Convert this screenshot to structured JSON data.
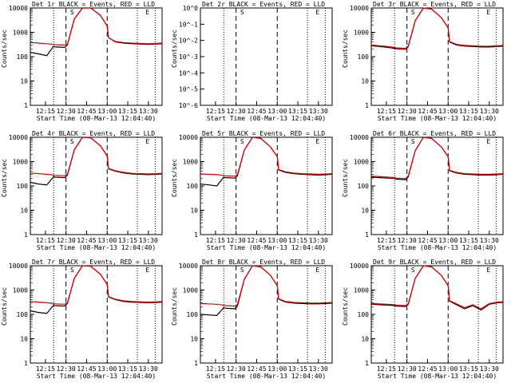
{
  "figure": {
    "xlabel": "Start Time (08-Mar-13 12:04:40)",
    "ylabel": "Counts/sec",
    "x_tick_labels": [
      "12:15",
      "12:30",
      "12:45",
      "13:00",
      "13:15",
      "13:30"
    ],
    "y_tick_labels_log": [
      "1",
      "10",
      "100",
      "1000",
      "10000"
    ],
    "y_tick_labels_small": [
      "10^0",
      "10^-1",
      "10^-2",
      "10^-3",
      "10^-4",
      "10^-5",
      "10^-6"
    ],
    "series_colors": {
      "events": "#000000",
      "lld": "#e00000"
    },
    "annotation_markers": [
      "S",
      "S",
      "E"
    ]
  },
  "chart_data": [
    {
      "type": "line",
      "title": "Det 1r BLACK = Events, RED = LLD",
      "ylim": [
        1,
        10000
      ],
      "log": true,
      "x": [
        "12:04",
        "12:10",
        "12:16",
        "12:21",
        "12:22",
        "12:29",
        "12:31",
        "12:36",
        "12:42",
        "12:48",
        "12:55",
        "13:00",
        "13:01",
        "13:06",
        "13:12",
        "13:18",
        "13:24",
        "13:30",
        "13:36",
        "13:40"
      ],
      "series": [
        {
          "name": "Events",
          "values": [
            150,
            130,
            110,
            270,
            250,
            240,
            300,
            3500,
            12000,
            10000,
            5000,
            1800,
            600,
            400,
            360,
            340,
            330,
            320,
            330,
            340
          ]
        },
        {
          "name": "LLD",
          "values": [
            380,
            360,
            340,
            320,
            310,
            300,
            320,
            3500,
            12000,
            10000,
            5000,
            1800,
            600,
            420,
            380,
            360,
            350,
            340,
            350,
            360
          ]
        }
      ]
    },
    {
      "type": "line",
      "title": "Det 2r BLACK = Events, RED = LLD",
      "ylim": [
        1e-06,
        1
      ],
      "log": true,
      "x": [],
      "series": []
    },
    {
      "type": "line",
      "title": "Det 3r BLACK = Events, RED = LLD",
      "ylim": [
        1,
        10000
      ],
      "log": true,
      "x": [
        "12:04",
        "12:10",
        "12:16",
        "12:21",
        "12:22",
        "12:29",
        "12:31",
        "12:36",
        "12:42",
        "12:48",
        "12:55",
        "13:00",
        "13:01",
        "13:06",
        "13:12",
        "13:18",
        "13:24",
        "13:30",
        "13:36",
        "13:40"
      ],
      "series": [
        {
          "name": "Events",
          "values": [
            280,
            260,
            240,
            220,
            210,
            200,
            260,
            3000,
            12000,
            9000,
            4000,
            1500,
            400,
            300,
            270,
            260,
            250,
            250,
            260,
            270
          ]
        },
        {
          "name": "LLD",
          "values": [
            300,
            280,
            260,
            240,
            230,
            220,
            280,
            3000,
            12000,
            9000,
            4000,
            1500,
            420,
            320,
            290,
            280,
            270,
            270,
            280,
            290
          ]
        }
      ]
    },
    {
      "type": "line",
      "title": "Det 4r BLACK = Events, RED = LLD",
      "ylim": [
        1,
        10000
      ],
      "log": true,
      "x": [
        "12:04",
        "12:10",
        "12:16",
        "12:21",
        "12:22",
        "12:29",
        "12:31",
        "12:36",
        "12:42",
        "12:48",
        "12:55",
        "13:00",
        "13:01",
        "13:06",
        "13:12",
        "13:18",
        "13:24",
        "13:30",
        "13:36",
        "13:40"
      ],
      "series": [
        {
          "name": "Events",
          "values": [
            140,
            120,
            110,
            240,
            230,
            220,
            280,
            3000,
            12000,
            9500,
            4500,
            1700,
            500,
            400,
            340,
            310,
            300,
            290,
            300,
            310
          ]
        },
        {
          "name": "LLD",
          "values": [
            340,
            320,
            300,
            280,
            270,
            260,
            300,
            3000,
            12000,
            9500,
            4500,
            1700,
            520,
            420,
            360,
            330,
            320,
            310,
            320,
            330
          ]
        }
      ]
    },
    {
      "type": "line",
      "title": "Det 5r BLACK = Events, RED = LLD",
      "ylim": [
        1,
        10000
      ],
      "log": true,
      "x": [
        "12:04",
        "12:10",
        "12:16",
        "12:21",
        "12:22",
        "12:29",
        "12:31",
        "12:36",
        "12:42",
        "12:48",
        "12:55",
        "13:00",
        "13:01",
        "13:06",
        "13:12",
        "13:18",
        "13:24",
        "13:30",
        "13:36",
        "13:40"
      ],
      "series": [
        {
          "name": "Events",
          "values": [
            120,
            110,
            100,
            230,
            220,
            210,
            260,
            3000,
            12000,
            9000,
            4000,
            1600,
            450,
            360,
            320,
            300,
            290,
            280,
            290,
            300
          ]
        },
        {
          "name": "LLD",
          "values": [
            310,
            300,
            290,
            270,
            260,
            250,
            290,
            3000,
            12000,
            9000,
            4000,
            1600,
            470,
            380,
            340,
            320,
            310,
            300,
            310,
            320
          ]
        }
      ]
    },
    {
      "type": "line",
      "title": "Det 6r BLACK = Events, RED = LLD",
      "ylim": [
        1,
        10000
      ],
      "log": true,
      "x": [
        "12:04",
        "12:10",
        "12:16",
        "12:21",
        "12:22",
        "12:29",
        "12:31",
        "12:36",
        "12:42",
        "12:48",
        "12:55",
        "13:00",
        "13:01",
        "13:06",
        "13:12",
        "13:18",
        "13:24",
        "13:30",
        "13:36",
        "13:40"
      ],
      "series": [
        {
          "name": "Events",
          "values": [
            230,
            220,
            210,
            200,
            190,
            180,
            240,
            2800,
            12000,
            9000,
            4000,
            1600,
            420,
            340,
            300,
            290,
            280,
            280,
            290,
            300
          ]
        },
        {
          "name": "LLD",
          "values": [
            250,
            240,
            230,
            220,
            210,
            200,
            260,
            2800,
            12000,
            9000,
            4000,
            1600,
            440,
            360,
            320,
            310,
            300,
            300,
            310,
            320
          ]
        }
      ]
    },
    {
      "type": "line",
      "title": "Det 7r BLACK = Events, RED = LLD",
      "ylim": [
        1,
        10000
      ],
      "log": true,
      "x": [
        "12:04",
        "12:10",
        "12:16",
        "12:21",
        "12:22",
        "12:29",
        "12:31",
        "12:36",
        "12:42",
        "12:48",
        "12:55",
        "13:00",
        "13:01",
        "13:06",
        "13:12",
        "13:18",
        "13:24",
        "13:30",
        "13:36",
        "13:40"
      ],
      "series": [
        {
          "name": "Events",
          "values": [
            140,
            120,
            110,
            240,
            230,
            220,
            280,
            3000,
            12000,
            9500,
            4500,
            1700,
            520,
            400,
            340,
            320,
            310,
            300,
            310,
            320
          ]
        },
        {
          "name": "LLD",
          "values": [
            340,
            320,
            300,
            280,
            270,
            260,
            300,
            3000,
            12000,
            9500,
            4500,
            1700,
            540,
            420,
            360,
            340,
            330,
            320,
            330,
            340
          ]
        }
      ]
    },
    {
      "type": "line",
      "title": "Det 8r BLACK = Events, RED = LLD",
      "ylim": [
        1,
        10000
      ],
      "log": true,
      "x": [
        "12:04",
        "12:10",
        "12:16",
        "12:21",
        "12:22",
        "12:29",
        "12:31",
        "12:36",
        "12:42",
        "12:48",
        "12:55",
        "13:00",
        "13:01",
        "13:06",
        "13:12",
        "13:18",
        "13:24",
        "13:30",
        "13:36",
        "13:40"
      ],
      "series": [
        {
          "name": "Events",
          "values": [
            100,
            95,
            90,
            190,
            180,
            170,
            220,
            2800,
            12000,
            9000,
            4000,
            1500,
            420,
            320,
            290,
            280,
            270,
            270,
            280,
            290
          ]
        },
        {
          "name": "LLD",
          "values": [
            280,
            270,
            260,
            240,
            230,
            220,
            260,
            2800,
            12000,
            9000,
            4000,
            1500,
            440,
            340,
            310,
            300,
            290,
            290,
            300,
            310
          ]
        }
      ]
    },
    {
      "type": "line",
      "title": "Det 9r BLACK = Events, RED = LLD",
      "ylim": [
        1,
        10000
      ],
      "log": true,
      "x": [
        "12:04",
        "12:10",
        "12:16",
        "12:21",
        "12:22",
        "12:29",
        "12:31",
        "12:36",
        "12:42",
        "12:48",
        "12:55",
        "13:00",
        "13:01",
        "13:06",
        "13:12",
        "13:18",
        "13:24",
        "13:30",
        "13:36",
        "13:40"
      ],
      "series": [
        {
          "name": "Events",
          "values": [
            260,
            250,
            240,
            230,
            220,
            210,
            260,
            3000,
            12000,
            9000,
            4000,
            1500,
            350,
            250,
            170,
            230,
            150,
            260,
            300,
            310
          ]
        },
        {
          "name": "LLD",
          "values": [
            280,
            270,
            260,
            250,
            240,
            230,
            280,
            3000,
            12000,
            9000,
            4000,
            1500,
            370,
            270,
            190,
            250,
            170,
            280,
            320,
            330
          ]
        }
      ]
    }
  ]
}
